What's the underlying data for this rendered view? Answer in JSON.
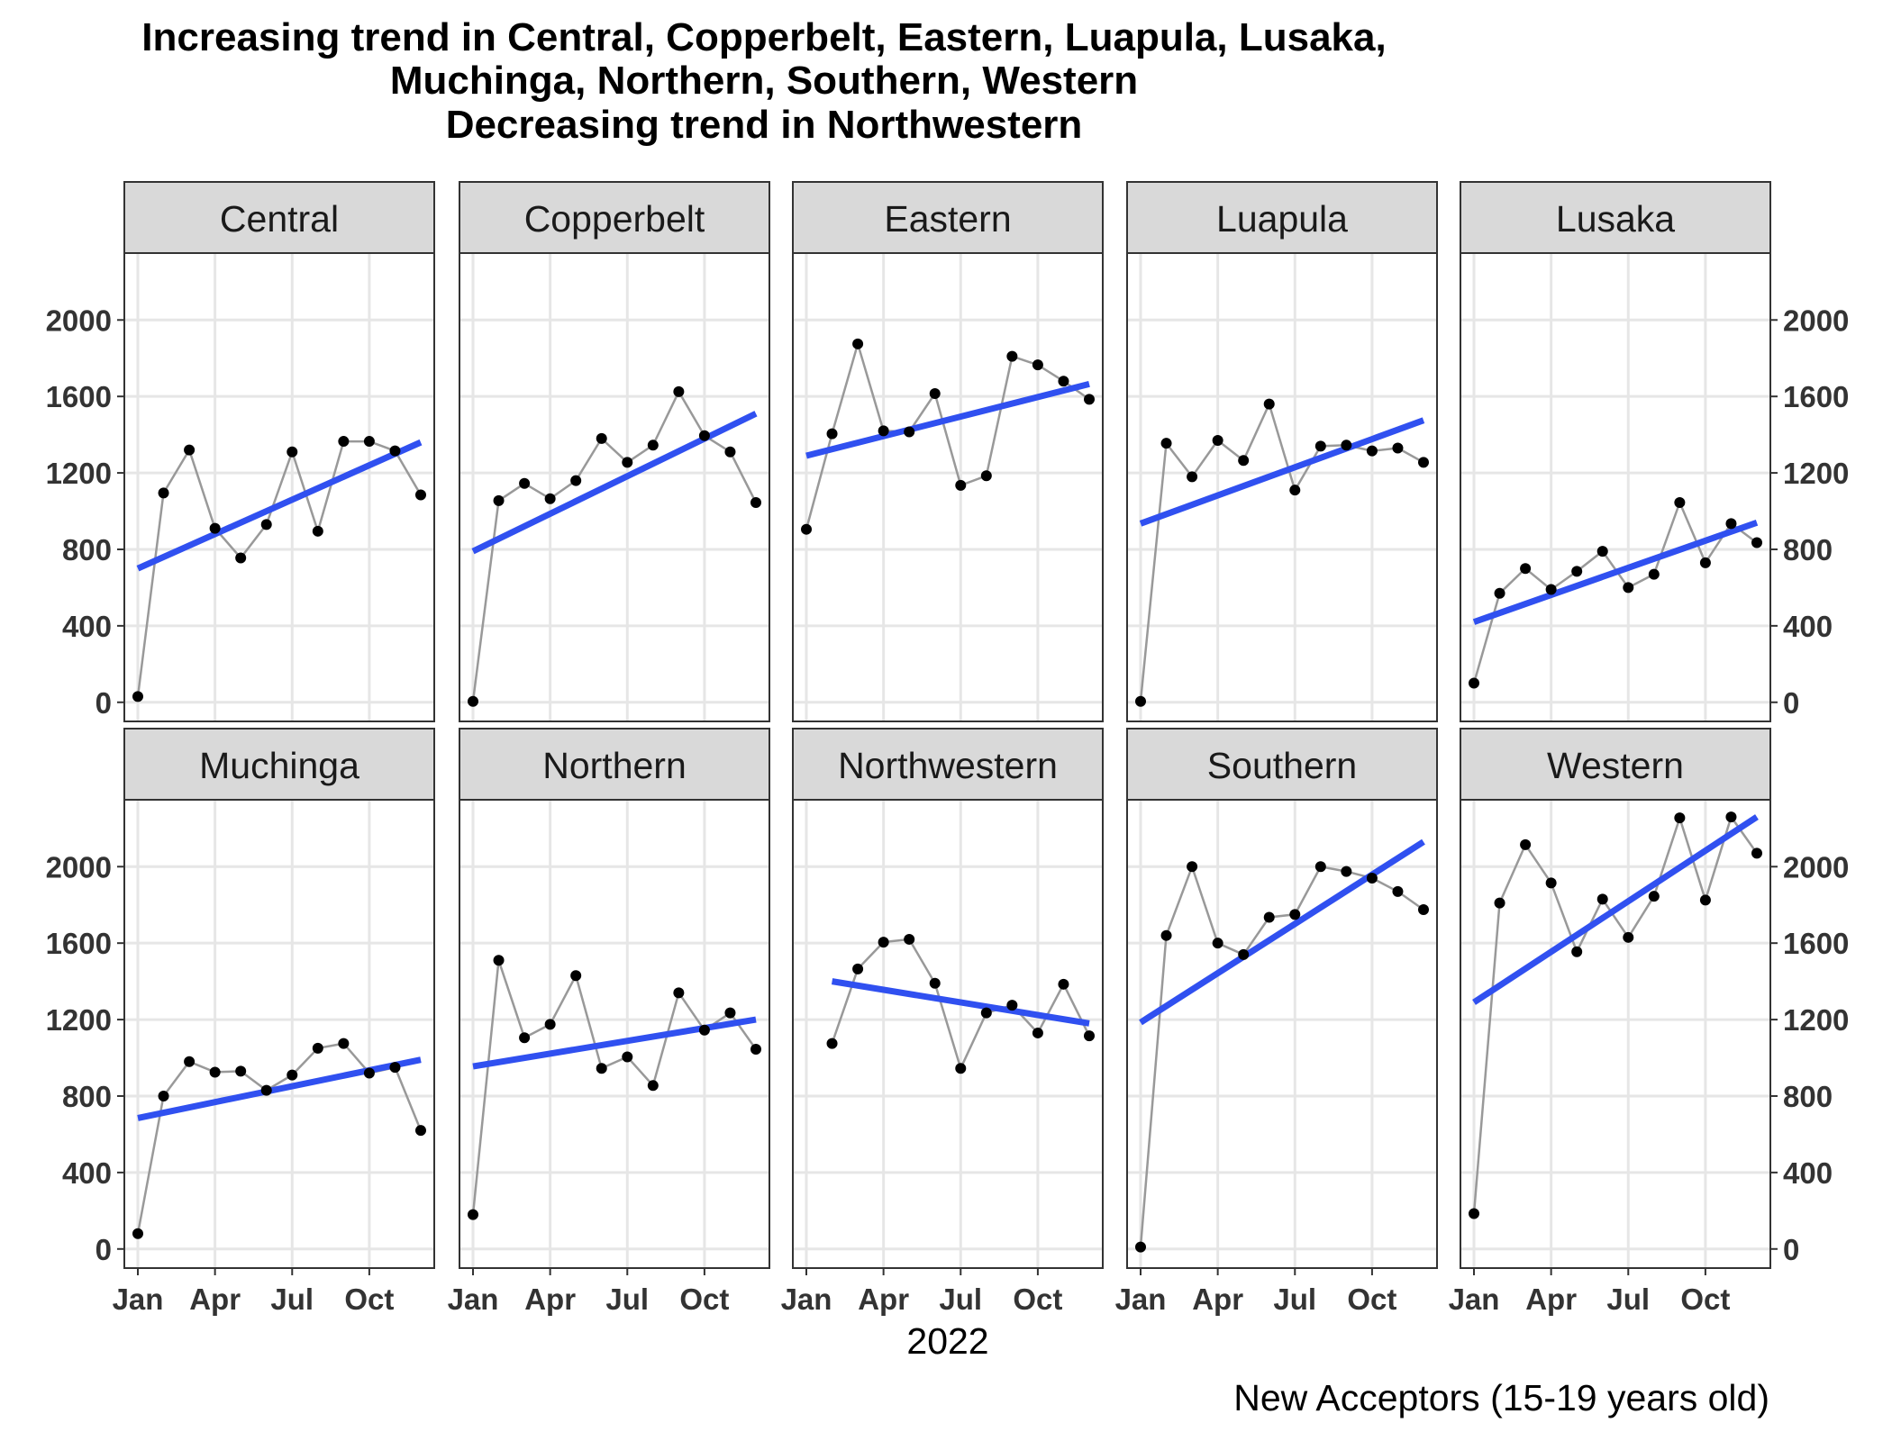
{
  "chart_data": {
    "type": "line",
    "title_lines": [
      "Increasing trend in Central, Copperbelt, Eastern, Luapula, Lusaka,",
      "Muchinga, Northern, Southern, Western",
      "Decreasing trend in Northwestern"
    ],
    "xlabel": "2022",
    "caption": "New Acceptors (15-19 years old)",
    "x_ticks": [
      "Jan",
      "Apr",
      "Jul",
      "Oct"
    ],
    "y_ticks": [
      "0",
      "400",
      "800",
      "1200",
      "1600",
      "2000"
    ],
    "ylim": [
      -100,
      2350
    ],
    "grid": true,
    "months": [
      "2022-01",
      "2022-02",
      "2022-03",
      "2022-04",
      "2022-05",
      "2022-06",
      "2022-07",
      "2022-08",
      "2022-09",
      "2022-10",
      "2022-11",
      "2022-12"
    ],
    "colors": {
      "trend": "#3050f0",
      "observed_line": "#999999",
      "point": "#000000",
      "strip": "#d9d9d9",
      "grid": "#e6e6e6"
    },
    "panels": [
      {
        "name": "Central",
        "start_month": 0,
        "values": [
          30,
          1095,
          1320,
          910,
          755,
          930,
          1310,
          895,
          1365,
          1365,
          1315,
          1085
        ],
        "trend": [
          700,
          1360
        ]
      },
      {
        "name": "Copperbelt",
        "start_month": 0,
        "values": [
          5,
          1055,
          1145,
          1065,
          1160,
          1380,
          1255,
          1345,
          1625,
          1395,
          1310,
          1045
        ],
        "trend": [
          790,
          1510
        ]
      },
      {
        "name": "Eastern",
        "start_month": 0,
        "values": [
          905,
          1405,
          1875,
          1420,
          1415,
          1615,
          1135,
          1185,
          1810,
          1765,
          1680,
          1585
        ],
        "trend": [
          1290,
          1665
        ]
      },
      {
        "name": "Luapula",
        "start_month": 0,
        "values": [
          5,
          1355,
          1180,
          1370,
          1265,
          1560,
          1110,
          1340,
          1345,
          1315,
          1330,
          1255
        ],
        "trend": [
          935,
          1475
        ]
      },
      {
        "name": "Lusaka",
        "start_month": 0,
        "values": [
          100,
          570,
          700,
          590,
          685,
          790,
          600,
          670,
          1045,
          730,
          935,
          835
        ],
        "trend": [
          420,
          940
        ]
      },
      {
        "name": "Muchinga",
        "start_month": 0,
        "values": [
          80,
          800,
          980,
          925,
          930,
          830,
          910,
          1050,
          1075,
          920,
          950,
          620
        ],
        "trend": [
          685,
          990
        ]
      },
      {
        "name": "Northern",
        "start_month": 0,
        "values": [
          180,
          1510,
          1105,
          1175,
          1430,
          945,
          1005,
          855,
          1340,
          1145,
          1235,
          1045
        ],
        "trend": [
          955,
          1200
        ]
      },
      {
        "name": "Northwestern",
        "start_month": 1,
        "values": [
          1075,
          1465,
          1605,
          1620,
          1390,
          945,
          1235,
          1275,
          1130,
          1385,
          1115
        ],
        "trend": [
          1400,
          1180
        ]
      },
      {
        "name": "Southern",
        "start_month": 0,
        "values": [
          10,
          1640,
          2000,
          1600,
          1540,
          1735,
          1750,
          2000,
          1975,
          1940,
          1870,
          1775
        ],
        "trend": [
          1185,
          2130
        ]
      },
      {
        "name": "Western",
        "start_month": 0,
        "values": [
          185,
          1810,
          2115,
          1915,
          1555,
          1830,
          1630,
          1845,
          2255,
          1825,
          2260,
          2070
        ],
        "trend": [
          1290,
          2260
        ]
      }
    ]
  }
}
